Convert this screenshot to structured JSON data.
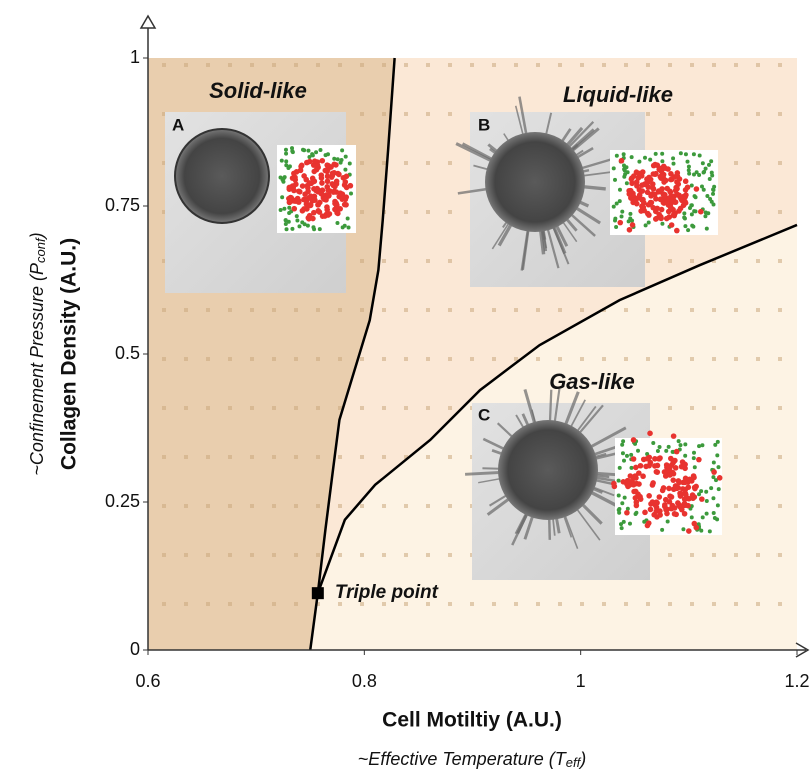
{
  "chart_data": {
    "type": "line",
    "x_label": "Cell Motiltiy (A.U.)",
    "x_label_2": {
      "text": "~Effective Temperature (T",
      "sub": "eff",
      "close": ")"
    },
    "y_label": "Collagen Density (A.U.)",
    "y_label_2": {
      "text": "~Confinement Pressure (P",
      "sub": "conf",
      "close": ")"
    },
    "xlim": [
      0.6,
      1.2
    ],
    "xticks": [
      0.6,
      0.8,
      1,
      1.2
    ],
    "ylim": [
      0,
      1
    ],
    "yticks": [
      0,
      0.25,
      0.5,
      0.75,
      1
    ],
    "series": [
      {
        "color": "#000000",
        "x": [
          0.75,
          0.757,
          0.764,
          0.771,
          0.777,
          0.791,
          0.805,
          0.813,
          0.817,
          0.822,
          0.828
        ],
        "values": [
          0,
          0.096,
          0.203,
          0.304,
          0.389,
          0.473,
          0.557,
          0.642,
          0.726,
          0.845,
          1.0
        ]
      },
      {
        "color": "#000000",
        "x": [
          0.757,
          0.782,
          0.81,
          0.861,
          0.907,
          0.962,
          1.036,
          1.11,
          1.2
        ],
        "values": [
          0.096,
          0.22,
          0.279,
          0.355,
          0.439,
          0.515,
          0.591,
          0.65,
          0.718
        ]
      }
    ],
    "regions": [
      "Solid-like",
      "Liquid-like",
      "Gas-like"
    ],
    "panels": [
      "A",
      "B",
      "C"
    ],
    "annotation": {
      "text": "Triple point",
      "x": 0.757,
      "y": 0.096
    }
  }
}
